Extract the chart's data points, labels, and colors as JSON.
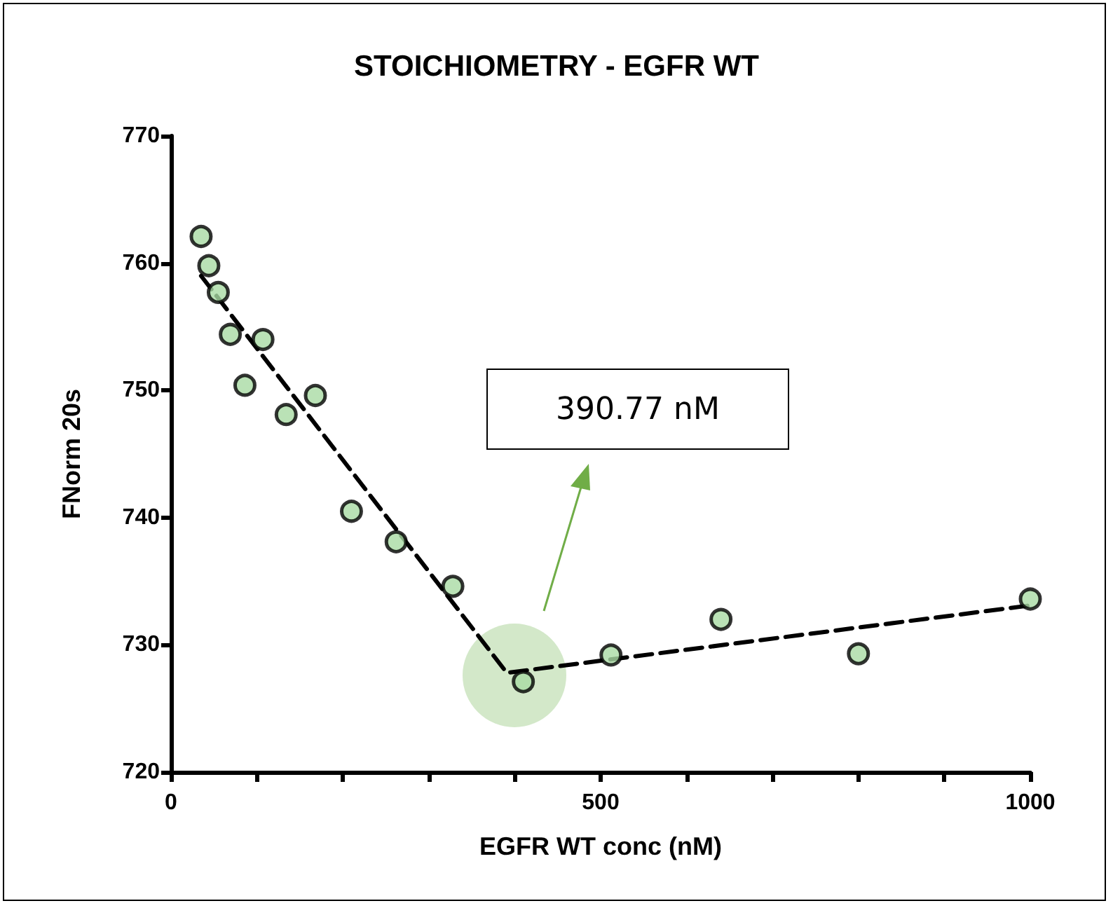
{
  "chart_data": {
    "type": "scatter",
    "title": "STOICHIOMETRY - EGFR WT",
    "xlabel": "EGFR WT conc (nM)",
    "ylabel": "FNorm 20s",
    "xlim": [
      0,
      1000
    ],
    "xticks": [
      0,
      {
        "value": 100,
        "label": null
      },
      {
        "value": 200,
        "label": null
      },
      {
        "value": 300,
        "label": null
      },
      {
        "value": 400,
        "label": null
      },
      500,
      {
        "value": 600,
        "label": null
      },
      {
        "value": 700,
        "label": null
      },
      {
        "value": 800,
        "label": null
      },
      {
        "value": 900,
        "label": null
      },
      1000
    ],
    "ylim": [
      720,
      770
    ],
    "yticks": [
      720,
      730,
      740,
      750,
      760,
      770
    ],
    "grid": false,
    "marker": "circle",
    "series": [
      {
        "type": "scatter",
        "color": "#a9dba4",
        "x": [
          35,
          44,
          55,
          69,
          86,
          107,
          134,
          168,
          210,
          262,
          328,
          410,
          512,
          640,
          800,
          1000
        ],
        "values": [
          762.1,
          759.8,
          757.7,
          754.4,
          750.4,
          754.0,
          748.1,
          749.6,
          740.5,
          738.1,
          734.6,
          727.1,
          729.2,
          732.0,
          729.3,
          733.6
        ]
      },
      {
        "type": "line",
        "color": "#000000",
        "line_style": "dashed",
        "marker": "none",
        "x": [
          35,
          390.77,
          1000
        ],
        "values": [
          759.0,
          727.8,
          733.1
        ]
      }
    ],
    "annotations": [
      "390.77 nM"
    ]
  }
}
